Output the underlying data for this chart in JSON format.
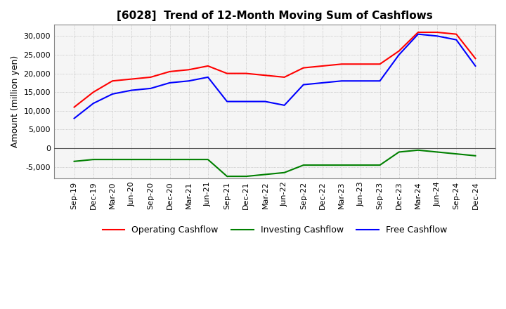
{
  "title": "[6028]  Trend of 12-Month Moving Sum of Cashflows",
  "ylabel": "Amount (million yen)",
  "ylim": [
    -8000,
    33000
  ],
  "yticks": [
    -5000,
    0,
    5000,
    10000,
    15000,
    20000,
    25000,
    30000
  ],
  "x_labels": [
    "Sep-19",
    "Dec-19",
    "Mar-20",
    "Jun-20",
    "Sep-20",
    "Dec-20",
    "Mar-21",
    "Jun-21",
    "Sep-21",
    "Dec-21",
    "Mar-22",
    "Jun-22",
    "Sep-22",
    "Dec-22",
    "Mar-23",
    "Jun-23",
    "Sep-23",
    "Dec-23",
    "Mar-24",
    "Jun-24",
    "Sep-24",
    "Dec-24"
  ],
  "operating_cashflow": [
    11000,
    15000,
    18000,
    18500,
    19000,
    20500,
    21000,
    22000,
    20000,
    20000,
    19500,
    19000,
    21500,
    22000,
    22500,
    22500,
    22500,
    26000,
    31000,
    31000,
    30500,
    24000
  ],
  "investing_cashflow": [
    -3500,
    -3000,
    -3000,
    -3000,
    -3000,
    -3000,
    -3000,
    -3000,
    -7500,
    -7500,
    -7000,
    -6500,
    -4500,
    -4500,
    -4500,
    -4500,
    -4500,
    -1000,
    -500,
    -1000,
    -1500,
    -2000
  ],
  "free_cashflow": [
    8000,
    12000,
    14500,
    15500,
    16000,
    17500,
    18000,
    19000,
    12500,
    12500,
    12500,
    11500,
    17000,
    17500,
    18000,
    18000,
    18000,
    25000,
    30500,
    30000,
    29000,
    22000
  ],
  "line_colors": {
    "operating": "#ff0000",
    "investing": "#008000",
    "free": "#0000ff"
  },
  "legend_labels": [
    "Operating Cashflow",
    "Investing Cashflow",
    "Free Cashflow"
  ],
  "background_color": "#ffffff",
  "plot_bg_color": "#f5f5f5",
  "grid_color": "#aaaaaa",
  "title_fontsize": 11,
  "tick_fontsize": 8,
  "label_fontsize": 9
}
